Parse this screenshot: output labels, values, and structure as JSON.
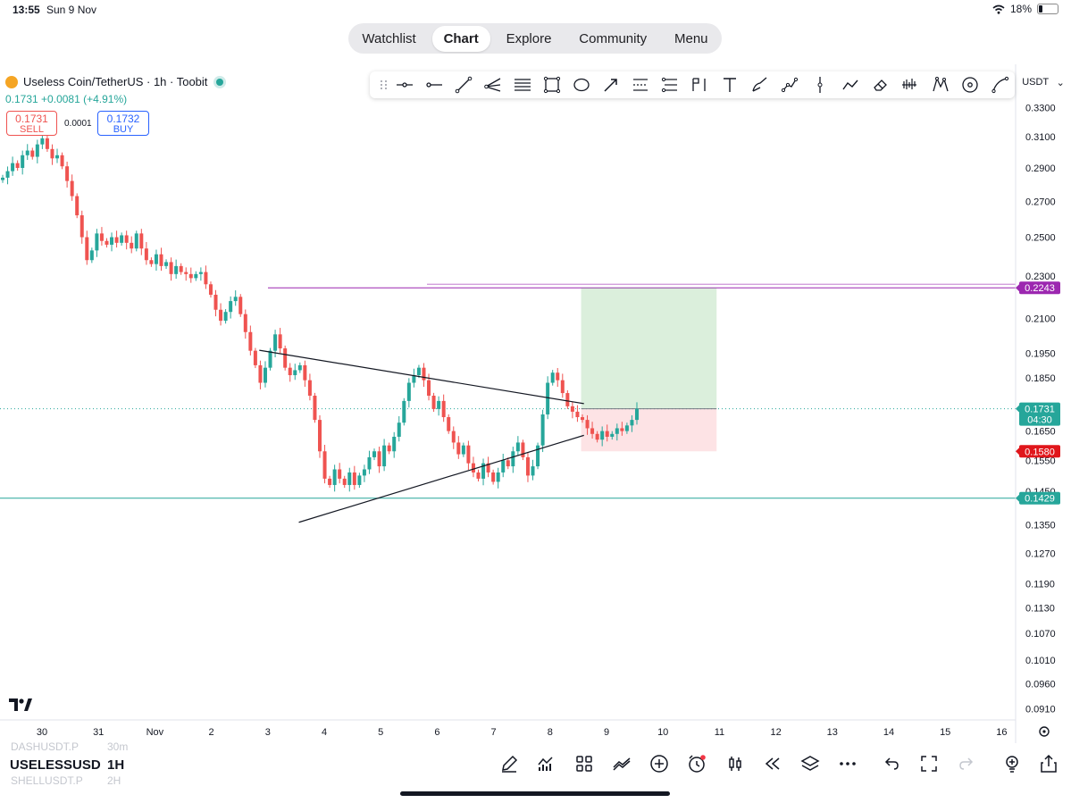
{
  "status": {
    "time": "13:55",
    "date": "Sun 9 Nov",
    "battery": "18%",
    "battery_level": 0.18
  },
  "nav": {
    "tabs": [
      "Watchlist",
      "Chart",
      "Explore",
      "Community",
      "Menu"
    ],
    "active": "Chart"
  },
  "legend": {
    "title": "Useless Coin/TetherUS · 1h · Toobit",
    "last": "0.1731",
    "change": "+0.0081",
    "change_pct": "(+4.91%)",
    "sell_price": "0.1731",
    "sell_label": "SELL",
    "spread": "0.0001",
    "buy_price": "0.1732",
    "buy_label": "BUY"
  },
  "currency_selector": "USDT",
  "toolbar_icons": [
    "drag-handle-icon",
    "horizontal-ray-icon",
    "horizontal-line-icon",
    "trend-line-icon",
    "pitchfork-icon",
    "parallel-channel-icon",
    "rectangle-icon",
    "ellipse-icon",
    "arrow-icon",
    "fib-retracement-icon",
    "fib-extension-icon",
    "measure-icon",
    "text-icon",
    "brush-icon",
    "path-icon",
    "vertical-line-icon",
    "polyline-icon",
    "eraser-icon",
    "projection-icon",
    "xabcd-pattern-icon",
    "cycle-icon",
    "curve-icon"
  ],
  "chart_data": {
    "type": "candlestick",
    "symbol": "USELESSUSDT",
    "interval": "1H",
    "x_labels": [
      "30",
      "31",
      "Nov",
      "2",
      "3",
      "4",
      "5",
      "6",
      "7",
      "8",
      "9",
      "10",
      "11",
      "12",
      "13",
      "14",
      "15",
      "16"
    ],
    "y_labels": [
      "0.3300",
      "0.3100",
      "0.2900",
      "0.2700",
      "0.2500",
      "0.2300",
      "0.2100",
      "0.1950",
      "0.1850",
      "0.1650",
      "0.1550",
      "0.1450",
      "0.1350",
      "0.1270",
      "0.1190",
      "0.1130",
      "0.1070",
      "0.1010",
      "0.0960",
      "0.0910"
    ],
    "ylim": [
      0.089,
      0.34
    ],
    "price_line": {
      "value": 0.1731,
      "label": "0.1731",
      "countdown": "04:30"
    },
    "levels": [
      {
        "name": "target",
        "value": 0.2243,
        "label": "0.2243",
        "color": "#9c27b0"
      },
      {
        "name": "stop",
        "value": 0.158,
        "label": "0.1580",
        "color": "#e0161b"
      },
      {
        "name": "support",
        "value": 0.1429,
        "label": "0.1429",
        "color": "#26a69a"
      }
    ],
    "closes": [
      0.284,
      0.288,
      0.293,
      0.29,
      0.298,
      0.301,
      0.297,
      0.305,
      0.309,
      0.302,
      0.296,
      0.298,
      0.291,
      0.282,
      0.273,
      0.262,
      0.25,
      0.238,
      0.243,
      0.252,
      0.248,
      0.246,
      0.25,
      0.247,
      0.251,
      0.247,
      0.244,
      0.252,
      0.244,
      0.238,
      0.236,
      0.241,
      0.235,
      0.237,
      0.231,
      0.235,
      0.232,
      0.231,
      0.229,
      0.231,
      0.232,
      0.226,
      0.221,
      0.214,
      0.209,
      0.213,
      0.218,
      0.22,
      0.212,
      0.204,
      0.196,
      0.19,
      0.183,
      0.189,
      0.196,
      0.203,
      0.197,
      0.189,
      0.186,
      0.188,
      0.19,
      0.184,
      0.178,
      0.169,
      0.158,
      0.149,
      0.147,
      0.152,
      0.149,
      0.147,
      0.151,
      0.147,
      0.15,
      0.152,
      0.156,
      0.158,
      0.153,
      0.16,
      0.158,
      0.163,
      0.168,
      0.176,
      0.183,
      0.186,
      0.189,
      0.184,
      0.178,
      0.173,
      0.176,
      0.17,
      0.165,
      0.161,
      0.157,
      0.16,
      0.154,
      0.151,
      0.149,
      0.154,
      0.151,
      0.148,
      0.151,
      0.155,
      0.153,
      0.158,
      0.161,
      0.156,
      0.15,
      0.153,
      0.16,
      0.171,
      0.183,
      0.187,
      0.184,
      0.179,
      0.174,
      0.172,
      0.17,
      0.169,
      0.166,
      0.164,
      0.162,
      0.165,
      0.163,
      0.164,
      0.166,
      0.165,
      0.167,
      0.169,
      0.1731
    ],
    "drawings": [
      {
        "type": "trend-line",
        "from": {
          "x": 3.85,
          "y": 0.1962
        },
        "to": {
          "x": 9.6,
          "y": 0.175
        }
      },
      {
        "type": "trend-line",
        "from": {
          "x": 4.55,
          "y": 0.1357
        },
        "to": {
          "x": 9.6,
          "y": 0.1635
        }
      },
      {
        "type": "long-position",
        "x_start": 9.55,
        "x_end": 11.95,
        "entry": 0.1731,
        "target": 0.2243,
        "stop": 0.158
      }
    ]
  },
  "bottom": {
    "symbol": "USELESSUSD",
    "timeframe": "1H",
    "ghost_items": [
      {
        "symbol": "DASHUSDT.P",
        "tf": "30m"
      },
      {
        "symbol": "SHELLUSDT.P",
        "tf": "2H"
      }
    ],
    "icons": [
      "pen-icon",
      "indicators-icon",
      "templates-icon",
      "compare-icon",
      "add-icon",
      "alert-icon",
      "candle-type-icon",
      "replay-icon",
      "layers-icon",
      "more-icon",
      "undo-icon",
      "fullscreen-icon",
      "redo-icon",
      "idea-icon",
      "share-icon"
    ]
  }
}
